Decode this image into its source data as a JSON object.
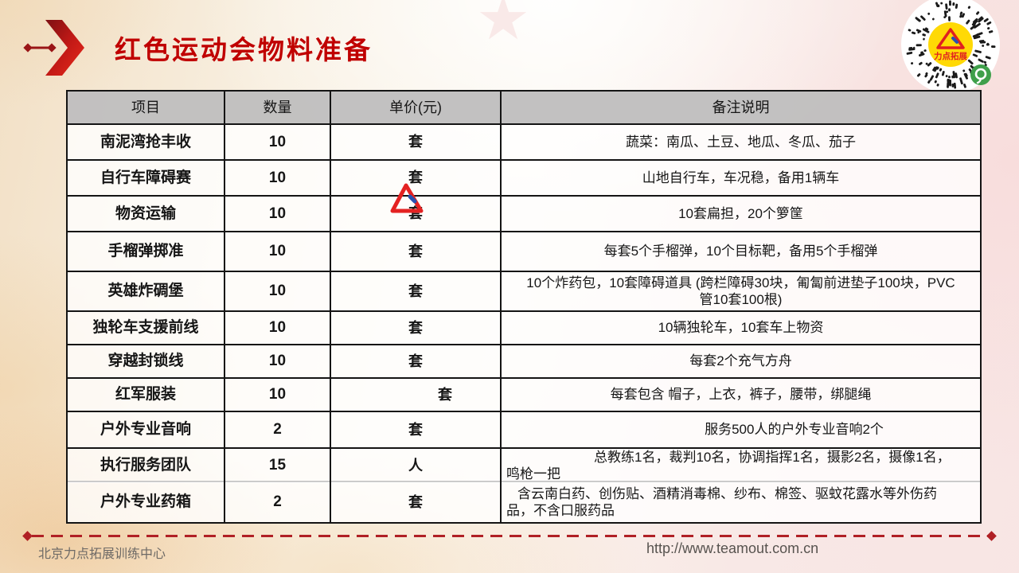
{
  "header": {
    "title": "红色运动会物料准备"
  },
  "qr": {
    "logo_text": "力点拓展",
    "colors": {
      "center_bg": "#FFD905",
      "logo_red": "#e02020",
      "badge_green": "#3f9f4a"
    }
  },
  "table": {
    "columns": [
      "项目",
      "数量",
      "单价(元)",
      "备注说明"
    ],
    "rows": [
      {
        "item_parts": [
          {
            "text": "南泥湾抢丰收",
            "font": "serif"
          }
        ],
        "qty": "10",
        "unit": "套",
        "note": "蔬菜：南瓜、土豆、地瓜、冬瓜、茄子",
        "note_align": "center"
      },
      {
        "item_parts": [
          {
            "text": "自行车障碍赛",
            "font": "serif"
          }
        ],
        "qty": "10",
        "unit": "套",
        "note": "山地自行车，车况稳，备用1辆车",
        "note_align": "center"
      },
      {
        "item_parts": [
          {
            "text": "物资运输",
            "font": "sans"
          }
        ],
        "qty": "10",
        "unit": "套",
        "note": "10套扁担，20个箩筐",
        "note_align": "center"
      },
      {
        "item_parts": [
          {
            "text": "手榴弹掷准",
            "font": "serif"
          }
        ],
        "qty": "10",
        "unit": "套",
        "note": "每套5个手榴弹，10个目标靶，备用5个手榴弹",
        "note_align": "center"
      },
      {
        "item_parts": [
          {
            "text": "英雄炸碉堡",
            "font": "serif"
          }
        ],
        "qty": "10",
        "unit": "套",
        "note": "10个炸药包，10套障碍道具 (跨栏障碍30块，匍匐前进垫子100块，PVC\n管10套100根)",
        "note_align": "center",
        "watermark": true
      },
      {
        "item_parts": [
          {
            "text": "独轮车",
            "font": "sans"
          },
          {
            "text": "支援前线",
            "font": "serif"
          }
        ],
        "qty": "10",
        "unit": "套",
        "note": "10辆独轮车，10套车上物资",
        "note_align": "center"
      },
      {
        "item_parts": [
          {
            "text": "穿越封锁线",
            "font": "sans"
          }
        ],
        "qty": "10",
        "unit": "套",
        "note": "每套2个充气方舟",
        "note_align": "center"
      },
      {
        "item_parts": [
          {
            "text": "红军服装",
            "font": "sans"
          }
        ],
        "qty": "10",
        "unit": "套",
        "unit_shift": 80,
        "note": "每套包含 帽子，上衣，裤子，腰带，绑腿绳",
        "note_align": "center"
      },
      {
        "item_parts": [
          {
            "text": "户外专业音响",
            "font": "sans"
          }
        ],
        "qty": "2",
        "unit": "套",
        "note": "服务500人的户外专业音响2个",
        "note_align": "center",
        "note_shift": 140
      },
      {
        "item_parts": [
          {
            "text": "执行服务团队",
            "font": "sans"
          }
        ],
        "qty": "15",
        "unit": "人",
        "note": "总教练1名，裁判10名，协调指挥1名，摄影2名，摄像1名，\n鸣枪一把",
        "note_align": "left",
        "note_indent": 110
      },
      {
        "item_parts": [
          {
            "text": "户外专业药箱",
            "font": "sans"
          }
        ],
        "qty": "2",
        "unit": "套",
        "note": "含云南白药、创伤贴、酒精消毒棉、纱布、棉签、驱蚊花露水等外伤药\n品，不含口服药品",
        "note_align": "left",
        "note_indent": 14
      }
    ]
  },
  "footer": {
    "company": "北京力点拓展训练中心",
    "url": "http://www.teamout.com.cn"
  },
  "colors": {
    "title_red": "#c00000",
    "divider_red": "#b02025",
    "border_black": "#141414",
    "header_gray": "#c0bebe"
  }
}
